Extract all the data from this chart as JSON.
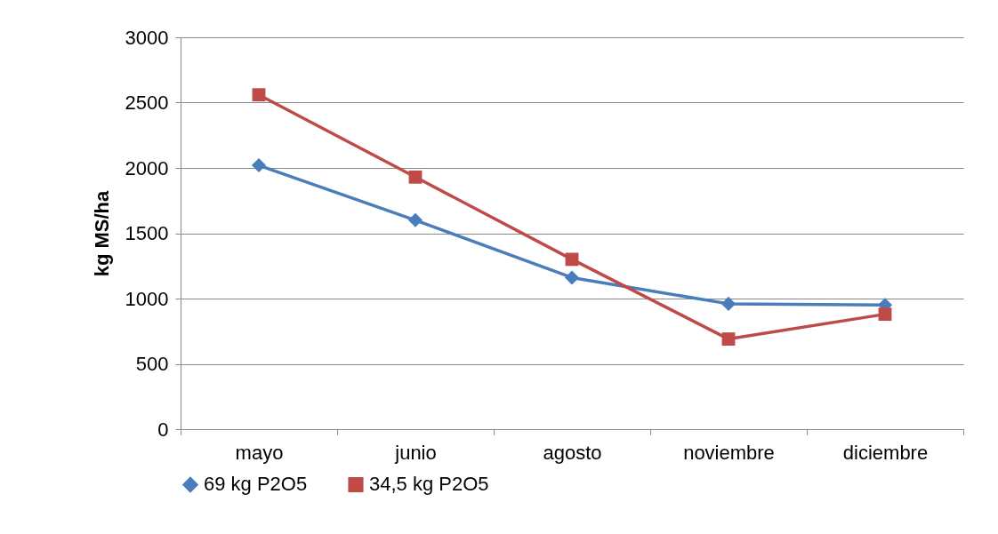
{
  "chart_data": {
    "type": "line",
    "ylabel": "kg MS/ha",
    "categories": [
      "mayo",
      "junio",
      "agosto",
      "noviembre",
      "diciembre"
    ],
    "series": [
      {
        "name": "69 kg P2O5",
        "color": "#4a7ebb",
        "marker": "diamond",
        "values": [
          2020,
          1600,
          1160,
          960,
          950
        ]
      },
      {
        "name": "34,5 kg P2O5",
        "color": "#be4b48",
        "marker": "square",
        "values": [
          2560,
          1930,
          1300,
          690,
          880
        ]
      }
    ],
    "ylim": [
      0,
      3000
    ],
    "yticks": [
      0,
      500,
      1000,
      1500,
      2000,
      2500,
      3000
    ],
    "grid": "y",
    "legend": "bottom",
    "line_style": "solid"
  }
}
